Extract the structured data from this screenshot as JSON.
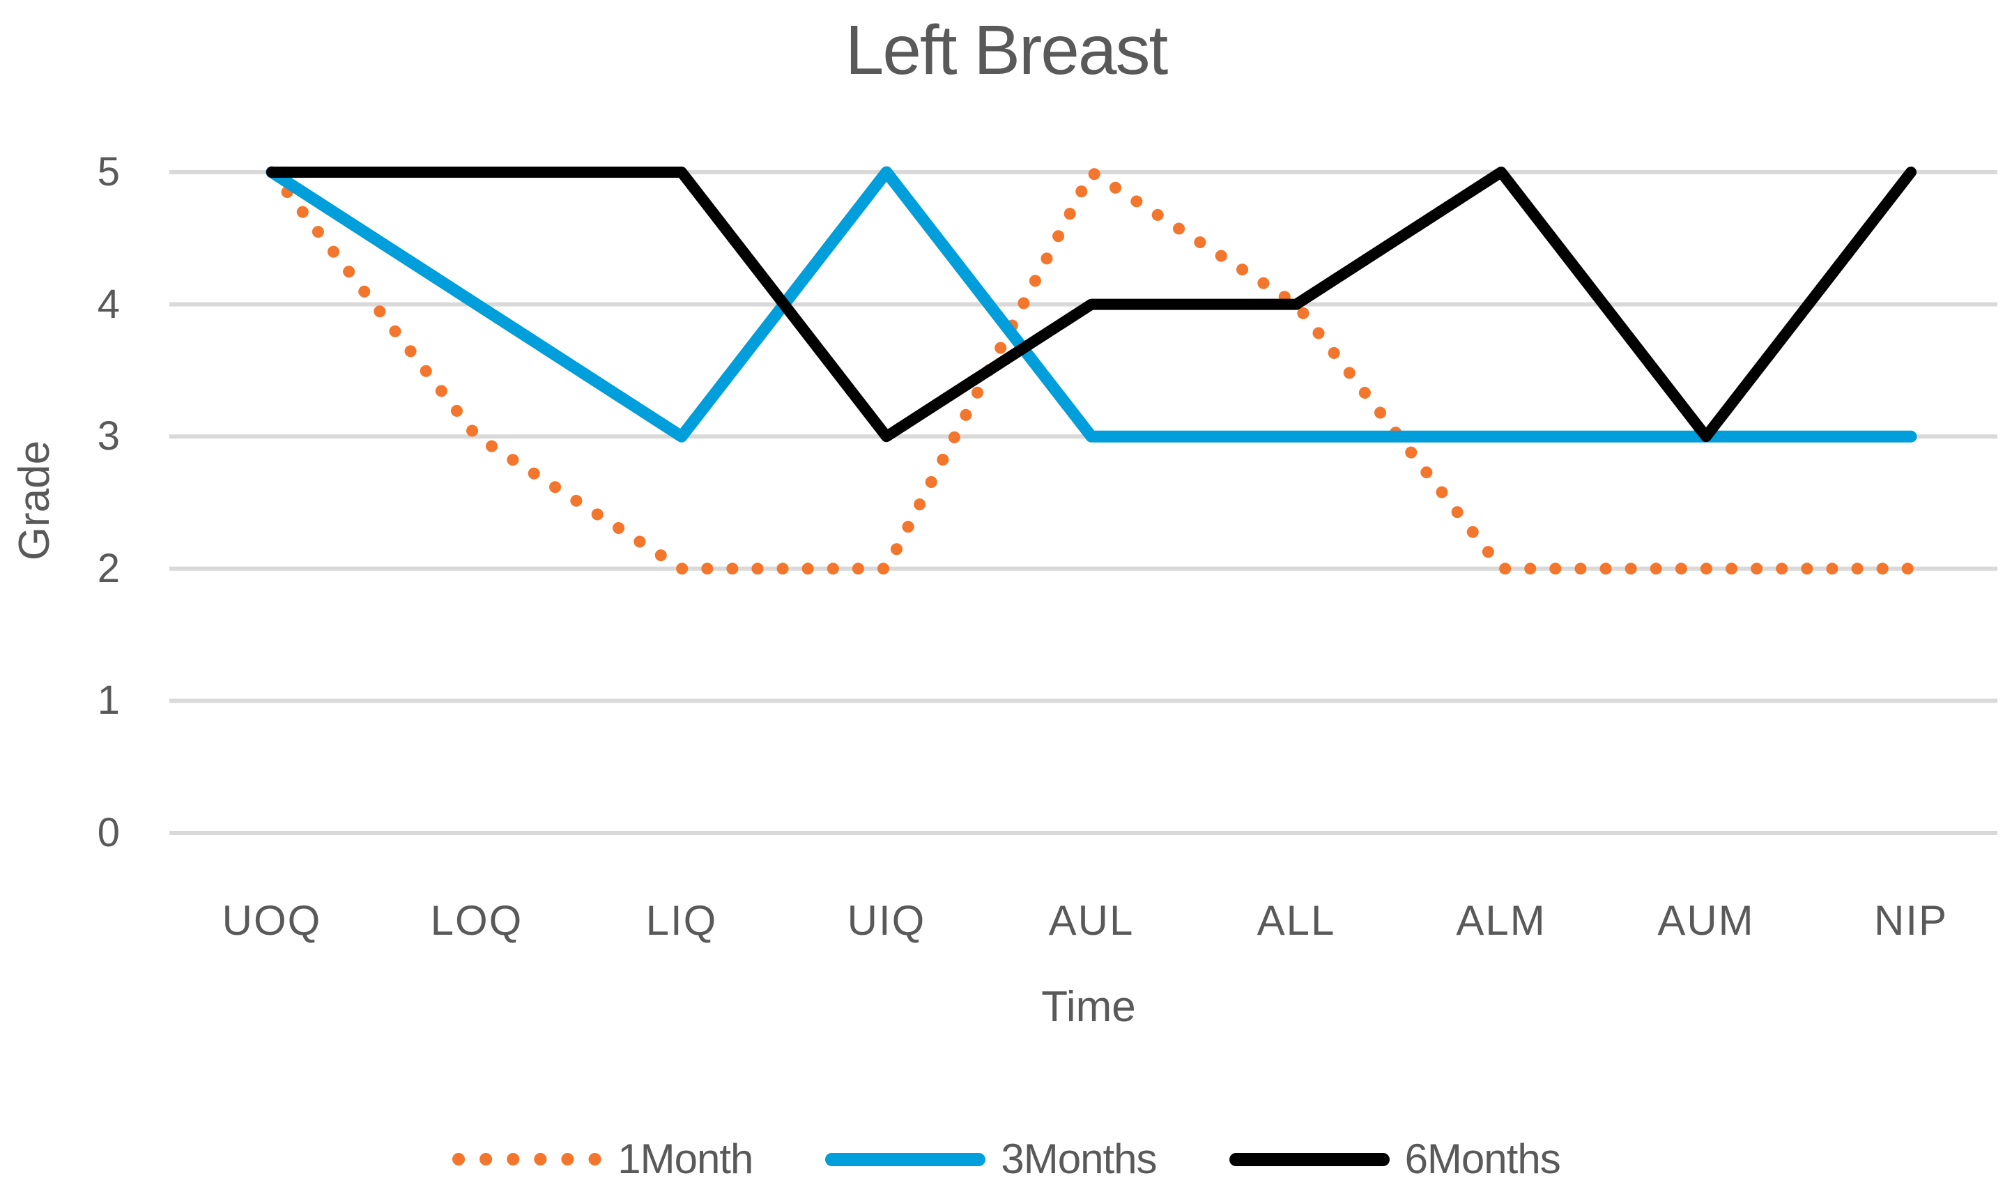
{
  "chart_data": {
    "type": "line",
    "title": "Left Breast",
    "xlabel": "Time",
    "ylabel": "Grade",
    "categories": [
      "UOQ",
      "LOQ",
      "LIQ",
      "UIQ",
      "AUL",
      "ALL",
      "ALM",
      "AUM",
      "NIP"
    ],
    "y_ticks": [
      0,
      1,
      2,
      3,
      4,
      5
    ],
    "ylim": [
      0,
      5
    ],
    "grid": "horizontal",
    "legend_position": "bottom",
    "series": [
      {
        "name": "1Month",
        "style": "dotted",
        "color": "#F4762C",
        "values": [
          5,
          3,
          2,
          2,
          5,
          4,
          2,
          2,
          2
        ]
      },
      {
        "name": "3Months",
        "style": "solid",
        "color": "#009EDA",
        "values": [
          5,
          4,
          3,
          5,
          3,
          3,
          3,
          3,
          3
        ]
      },
      {
        "name": "6Months",
        "style": "solid",
        "color": "#000000",
        "values": [
          5,
          5,
          5,
          3,
          4,
          4,
          5,
          3,
          5
        ]
      }
    ]
  },
  "colors": {
    "gridline": "#D9D9D9",
    "text": "#595959",
    "background": "#FFFFFF"
  }
}
